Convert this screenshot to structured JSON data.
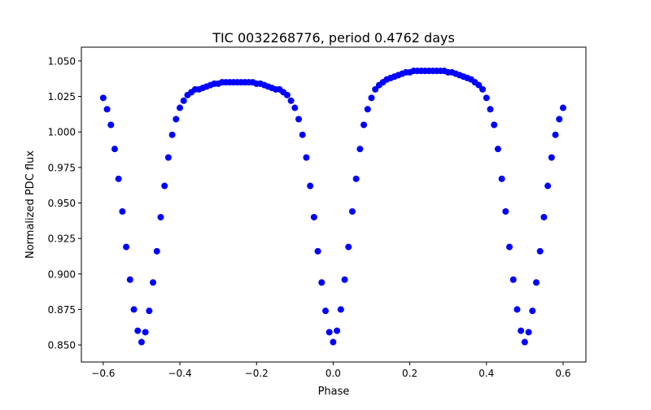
{
  "chart_data": {
    "type": "scatter",
    "title": "TIC 0032268776, period 0.4762 days",
    "xlabel": "Phase",
    "ylabel": "Normalized PDC flux",
    "xlim": [
      -0.657,
      0.6595
    ],
    "ylim": [
      0.838,
      1.0597
    ],
    "grid": false,
    "xticks": [
      -0.6,
      -0.4,
      -0.2,
      0.0,
      0.2,
      0.4,
      0.6
    ],
    "xtick_labels": [
      "−0.6",
      "−0.4",
      "−0.2",
      "0.0",
      "0.2",
      "0.4",
      "0.6"
    ],
    "yticks": [
      0.85,
      0.875,
      0.9,
      0.925,
      0.95,
      0.975,
      1.0,
      1.025,
      1.05
    ],
    "ytick_labels": [
      "0.850",
      "0.875",
      "0.900",
      "0.925",
      "0.950",
      "0.975",
      "1.000",
      "1.025",
      "1.050"
    ],
    "series": [
      {
        "name": "flux",
        "color": "#0000ff",
        "x": [
          -0.6,
          -0.59,
          -0.58,
          -0.57,
          -0.56,
          -0.55,
          -0.54,
          -0.53,
          -0.52,
          -0.51,
          -0.5,
          -0.49,
          -0.48,
          -0.47,
          -0.46,
          -0.45,
          -0.44,
          -0.43,
          -0.42,
          -0.41,
          -0.4,
          -0.39,
          -0.38,
          -0.37,
          -0.36,
          -0.35,
          -0.34,
          -0.33,
          -0.32,
          -0.31,
          -0.3,
          -0.29,
          -0.28,
          -0.27,
          -0.26,
          -0.25,
          -0.24,
          -0.23,
          -0.22,
          -0.21,
          -0.2,
          -0.19,
          -0.18,
          -0.17,
          -0.16,
          -0.15,
          -0.14,
          -0.13,
          -0.12,
          -0.11,
          -0.1,
          -0.09,
          -0.08,
          -0.07,
          -0.06,
          -0.05,
          -0.04,
          -0.03,
          -0.02,
          -0.01,
          0.0,
          0.01,
          0.02,
          0.03,
          0.04,
          0.05,
          0.06,
          0.07,
          0.08,
          0.09,
          0.1,
          0.11,
          0.12,
          0.13,
          0.14,
          0.15,
          0.16,
          0.17,
          0.18,
          0.19,
          0.2,
          0.21,
          0.22,
          0.23,
          0.24,
          0.25,
          0.26,
          0.27,
          0.28,
          0.29,
          0.3,
          0.31,
          0.32,
          0.33,
          0.34,
          0.35,
          0.36,
          0.37,
          0.38,
          0.39,
          0.4,
          0.41,
          0.42,
          0.43,
          0.44,
          0.45,
          0.46,
          0.47,
          0.48,
          0.49,
          0.5,
          0.51,
          0.52,
          0.53,
          0.54,
          0.55,
          0.56,
          0.57,
          0.58,
          0.59,
          0.6
        ],
        "y": [
          1.024,
          1.016,
          1.005,
          0.988,
          0.967,
          0.944,
          0.919,
          0.896,
          0.875,
          0.86,
          0.852,
          0.859,
          0.874,
          0.894,
          0.916,
          0.94,
          0.962,
          0.982,
          0.998,
          1.009,
          1.017,
          1.022,
          1.026,
          1.028,
          1.03,
          1.03,
          1.031,
          1.032,
          1.033,
          1.034,
          1.034,
          1.035,
          1.035,
          1.035,
          1.035,
          1.035,
          1.035,
          1.035,
          1.035,
          1.035,
          1.034,
          1.034,
          1.033,
          1.032,
          1.031,
          1.03,
          1.03,
          1.028,
          1.026,
          1.022,
          1.017,
          1.009,
          0.998,
          0.982,
          0.962,
          0.94,
          0.916,
          0.894,
          0.874,
          0.859,
          0.852,
          0.86,
          0.875,
          0.896,
          0.919,
          0.944,
          0.967,
          0.988,
          1.005,
          1.016,
          1.024,
          1.03,
          1.033,
          1.035,
          1.037,
          1.038,
          1.039,
          1.04,
          1.041,
          1.042,
          1.042,
          1.043,
          1.043,
          1.043,
          1.043,
          1.043,
          1.043,
          1.043,
          1.043,
          1.043,
          1.042,
          1.042,
          1.041,
          1.04,
          1.039,
          1.038,
          1.037,
          1.035,
          1.033,
          1.03,
          1.024,
          1.016,
          1.005,
          0.988,
          0.967,
          0.944,
          0.919,
          0.896,
          0.875,
          0.86,
          0.852,
          0.859,
          0.874,
          0.894,
          0.916,
          0.94,
          0.962,
          0.982,
          0.998,
          1.009,
          1.017
        ]
      }
    ]
  }
}
